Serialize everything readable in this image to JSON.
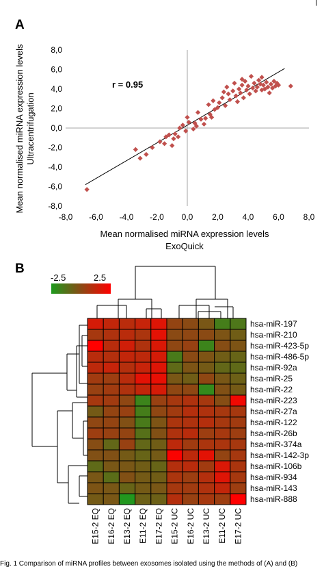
{
  "top_mark": "|",
  "caption": "Fig. 1 Comparison of miRNA profiles between exosomes isolated using the methods of (A) and (B)",
  "chart_data": [
    {
      "type": "scatter",
      "panel": "A",
      "xlabel": "Mean normalised miRNA expression levels",
      "xlabel2": "ExoQuick",
      "ylabel": "Mean normalised miRNA expression levels",
      "ylabel2": "Ultracentrifugation",
      "xlim": [
        -8,
        8
      ],
      "ylim": [
        -8,
        8
      ],
      "x_ticks": [
        "-8,0",
        "-6,0",
        "-4,0",
        "-2,0",
        "0,0",
        "2,0",
        "4,0",
        "6,0",
        "8,0"
      ],
      "y_ticks": [
        "-8,0",
        "-6,0",
        "-4,0",
        "-2,0",
        "0,0",
        "2,0",
        "4,0",
        "6,0",
        "8,0"
      ],
      "annotation": "r = 0.95",
      "marker_color": "#c0504d",
      "trendline": {
        "x": [
          -6.7,
          6.4
        ],
        "y": [
          -5.8,
          6.1
        ]
      },
      "points": [
        {
          "x": -6.6,
          "y": -6.3
        },
        {
          "x": -3.4,
          "y": -2.2
        },
        {
          "x": -3.1,
          "y": -3.1
        },
        {
          "x": -2.7,
          "y": -2.7
        },
        {
          "x": -2.3,
          "y": -2.0
        },
        {
          "x": -1.8,
          "y": -1.4
        },
        {
          "x": -1.5,
          "y": -1.6
        },
        {
          "x": -1.4,
          "y": -0.9
        },
        {
          "x": -1.2,
          "y": -0.7
        },
        {
          "x": -0.9,
          "y": -1.1
        },
        {
          "x": -0.8,
          "y": -0.6
        },
        {
          "x": -0.6,
          "y": -0.9
        },
        {
          "x": -0.5,
          "y": 0.0
        },
        {
          "x": -0.3,
          "y": 0.3
        },
        {
          "x": -0.1,
          "y": -0.3
        },
        {
          "x": 0.0,
          "y": 1.1
        },
        {
          "x": 0.1,
          "y": 0.6
        },
        {
          "x": 0.4,
          "y": -0.1
        },
        {
          "x": 0.5,
          "y": 0.5
        },
        {
          "x": 0.6,
          "y": 0.2
        },
        {
          "x": 0.7,
          "y": 1.6
        },
        {
          "x": 0.9,
          "y": 0.9
        },
        {
          "x": 1.1,
          "y": 0.4
        },
        {
          "x": 1.2,
          "y": 1.0
        },
        {
          "x": 1.4,
          "y": 2.4
        },
        {
          "x": 1.5,
          "y": 1.4
        },
        {
          "x": 1.7,
          "y": 2.8
        },
        {
          "x": 1.8,
          "y": 1.9
        },
        {
          "x": 2.0,
          "y": 2.1
        },
        {
          "x": 2.1,
          "y": 2.6
        },
        {
          "x": 2.3,
          "y": 3.1
        },
        {
          "x": 2.5,
          "y": 2.3
        },
        {
          "x": 2.6,
          "y": 4.2
        },
        {
          "x": 2.7,
          "y": 3.5
        },
        {
          "x": 2.8,
          "y": 2.9
        },
        {
          "x": 3.0,
          "y": 3.8
        },
        {
          "x": 3.1,
          "y": 4.6
        },
        {
          "x": 3.2,
          "y": 3.3
        },
        {
          "x": 3.3,
          "y": 2.7
        },
        {
          "x": 3.4,
          "y": 4.0
        },
        {
          "x": 3.5,
          "y": 3.6
        },
        {
          "x": 3.6,
          "y": 4.4
        },
        {
          "x": 3.7,
          "y": 3.1
        },
        {
          "x": 3.8,
          "y": 4.8
        },
        {
          "x": 3.9,
          "y": 3.9
        },
        {
          "x": 4.0,
          "y": 4.3
        },
        {
          "x": 4.1,
          "y": 3.5
        },
        {
          "x": 4.2,
          "y": 5.3
        },
        {
          "x": 4.3,
          "y": 4.1
        },
        {
          "x": 4.4,
          "y": 4.6
        },
        {
          "x": 4.5,
          "y": 3.8
        },
        {
          "x": 4.6,
          "y": 4.2
        },
        {
          "x": 4.7,
          "y": 4.9
        },
        {
          "x": 4.8,
          "y": 4.5
        },
        {
          "x": 4.9,
          "y": 3.9
        },
        {
          "x": 5.0,
          "y": 4.4
        },
        {
          "x": 5.1,
          "y": 4.0
        },
        {
          "x": 5.2,
          "y": 4.7
        },
        {
          "x": 5.3,
          "y": 4.2
        },
        {
          "x": 5.4,
          "y": 3.6
        },
        {
          "x": 5.5,
          "y": 4.5
        },
        {
          "x": 5.6,
          "y": 4.1
        },
        {
          "x": 5.7,
          "y": 4.8
        },
        {
          "x": 5.8,
          "y": 4.3
        },
        {
          "x": 5.9,
          "y": 4.6
        },
        {
          "x": 6.0,
          "y": 4.4
        },
        {
          "x": 6.8,
          "y": 4.3
        },
        {
          "x": 2.4,
          "y": 3.7
        },
        {
          "x": 1.6,
          "y": 1.1
        },
        {
          "x": -1.0,
          "y": -1.8
        },
        {
          "x": 3.6,
          "y": 5.0
        },
        {
          "x": 4.9,
          "y": 5.2
        }
      ]
    },
    {
      "type": "heatmap",
      "panel": "B",
      "colorbar": {
        "min": -2.5,
        "max": 2.5,
        "min_label": "-2.5",
        "max_label": "2.5",
        "low_color": "#1e9a1e",
        "mid_color": "#8a4a14",
        "high_color": "#ff0000"
      },
      "columns": [
        "E15-2 EQ",
        "E16-2 EQ",
        "E13-2 EQ",
        "E11-2 EQ",
        "E17-2 EQ",
        "E15-2 UC",
        "E16-2 UC",
        "E13-2 UC",
        "E11-2 UC",
        "E17-2 UC"
      ],
      "rows": [
        "hsa-miR-197",
        "hsa-miR-210",
        "hsa-miR-423-5p",
        "hsa-miR-486-5p",
        "hsa-miR-92a",
        "hsa-miR-25",
        "hsa-miR-22",
        "hsa-miR-223",
        "hsa-miR-27a",
        "hsa-miR-122",
        "hsa-miR-26b",
        "hsa-miR-374a",
        "hsa-miR-142-3p",
        "hsa-miR-106b",
        "hsa-miR-934",
        "hsa-miR-143",
        "hsa-miR-888"
      ],
      "values": [
        [
          1.6,
          1.2,
          1.0,
          1.3,
          1.8,
          0.2,
          0.0,
          -0.4,
          -1.6,
          -1.4
        ],
        [
          0.6,
          0.8,
          1.0,
          0.7,
          1.9,
          0.0,
          0.1,
          0.0,
          -0.3,
          -0.6
        ],
        [
          2.5,
          1.0,
          1.5,
          0.8,
          1.7,
          0.1,
          0.3,
          -1.8,
          -0.1,
          -0.3
        ],
        [
          1.0,
          0.9,
          1.2,
          1.1,
          1.6,
          -1.5,
          0.0,
          -0.3,
          -0.6,
          -0.8
        ],
        [
          1.1,
          1.3,
          0.9,
          1.3,
          1.8,
          -1.0,
          -0.3,
          -0.5,
          -0.9,
          -1.0
        ],
        [
          0.5,
          0.4,
          1.0,
          1.9,
          2.0,
          -0.4,
          -0.6,
          0.1,
          -0.4,
          -0.7
        ],
        [
          0.3,
          0.5,
          0.8,
          1.2,
          1.6,
          0.1,
          0.1,
          -2.0,
          -0.2,
          -0.5
        ],
        [
          0.6,
          0.5,
          0.1,
          -1.8,
          0.3,
          0.6,
          0.8,
          0.6,
          -0.1,
          2.2
        ],
        [
          -0.5,
          0.2,
          0.3,
          -1.6,
          0.1,
          0.5,
          0.9,
          0.8,
          0.6,
          0.6
        ],
        [
          0.1,
          0.2,
          -0.2,
          -1.5,
          -0.3,
          0.7,
          0.8,
          0.9,
          0.6,
          0.5
        ],
        [
          0.4,
          0.3,
          0.2,
          -1.2,
          -0.2,
          0.8,
          1.0,
          0.4,
          0.6,
          0.4
        ],
        [
          -0.1,
          -0.9,
          0.3,
          -0.9,
          -0.6,
          1.1,
          0.5,
          0.7,
          0.7,
          0.6
        ],
        [
          -0.2,
          -0.2,
          -0.5,
          -0.8,
          -0.5,
          2.4,
          1.1,
          1.9,
          0.2,
          0.6
        ],
        [
          -1.0,
          -0.4,
          -0.4,
          -0.6,
          -0.8,
          0.9,
          1.0,
          0.5,
          1.7,
          0.7
        ],
        [
          -0.4,
          -1.1,
          -0.2,
          -0.5,
          -0.6,
          0.7,
          0.4,
          0.9,
          1.8,
          0.6
        ],
        [
          -0.3,
          -0.4,
          -0.8,
          -0.5,
          -0.4,
          0.6,
          0.5,
          0.8,
          1.2,
          0.4
        ],
        [
          -0.5,
          -0.4,
          -2.4,
          -0.7,
          -0.7,
          0.9,
          0.3,
          0.6,
          0.4,
          2.6
        ]
      ]
    }
  ]
}
